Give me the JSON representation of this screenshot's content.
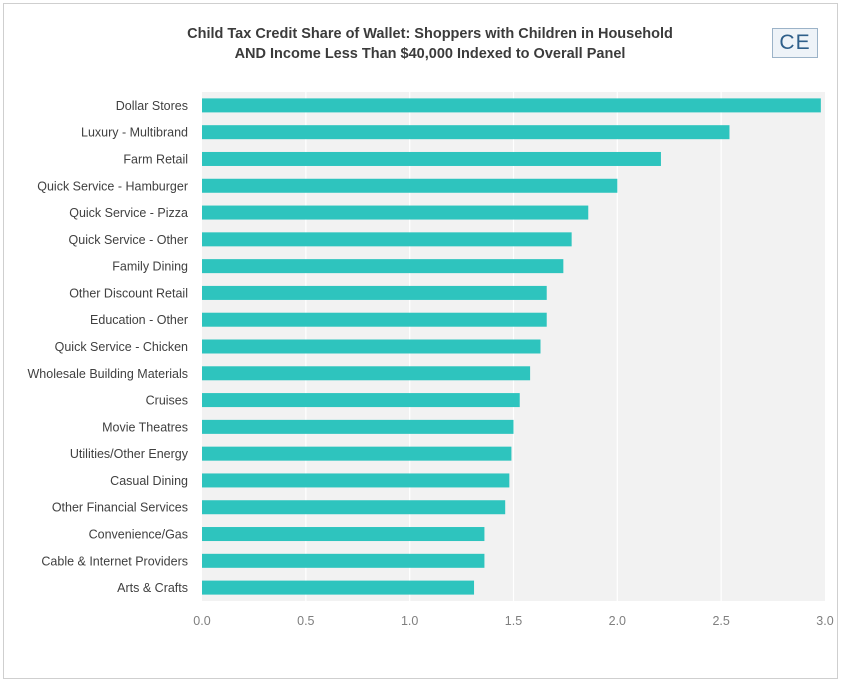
{
  "chart_title": {
    "line1": "Child Tax Credit Share of Wallet:  Shoppers with Children in Household",
    "line2": "AND Income Less Than $40,000 Indexed to Overall Panel"
  },
  "logo": {
    "text": "CE"
  },
  "colors": {
    "bar": "#2ec4be",
    "plot_bg": "#f2f2f2",
    "gridline": "#ffffff"
  },
  "chart_data": {
    "type": "bar",
    "orientation": "horizontal",
    "title": "Child Tax Credit Share of Wallet:  Shoppers with Children in Household AND Income Less Than $40,000 Indexed to Overall Panel",
    "categories": [
      "Dollar Stores",
      "Luxury - Multibrand",
      "Farm Retail",
      "Quick Service - Hamburger",
      "Quick Service - Pizza",
      "Quick Service - Other",
      "Family Dining",
      "Other Discount Retail",
      "Education - Other",
      "Quick Service - Chicken",
      "Wholesale Building Materials",
      "Cruises",
      "Movie Theatres",
      "Utilities/Other Energy",
      "Casual Dining",
      "Other Financial Services",
      "Convenience/Gas",
      "Cable & Internet Providers",
      "Arts & Crafts"
    ],
    "values": [
      2.98,
      2.54,
      2.21,
      2.0,
      1.86,
      1.78,
      1.74,
      1.66,
      1.66,
      1.63,
      1.58,
      1.53,
      1.5,
      1.49,
      1.48,
      1.46,
      1.36,
      1.36,
      1.31
    ],
    "xlim": [
      0,
      3.0
    ],
    "x_ticks": [
      "0.0",
      "0.5",
      "1.0",
      "1.5",
      "2.0",
      "2.5",
      "3.0"
    ],
    "xlabel": "",
    "ylabel": "",
    "grid": true,
    "legend": "none"
  }
}
